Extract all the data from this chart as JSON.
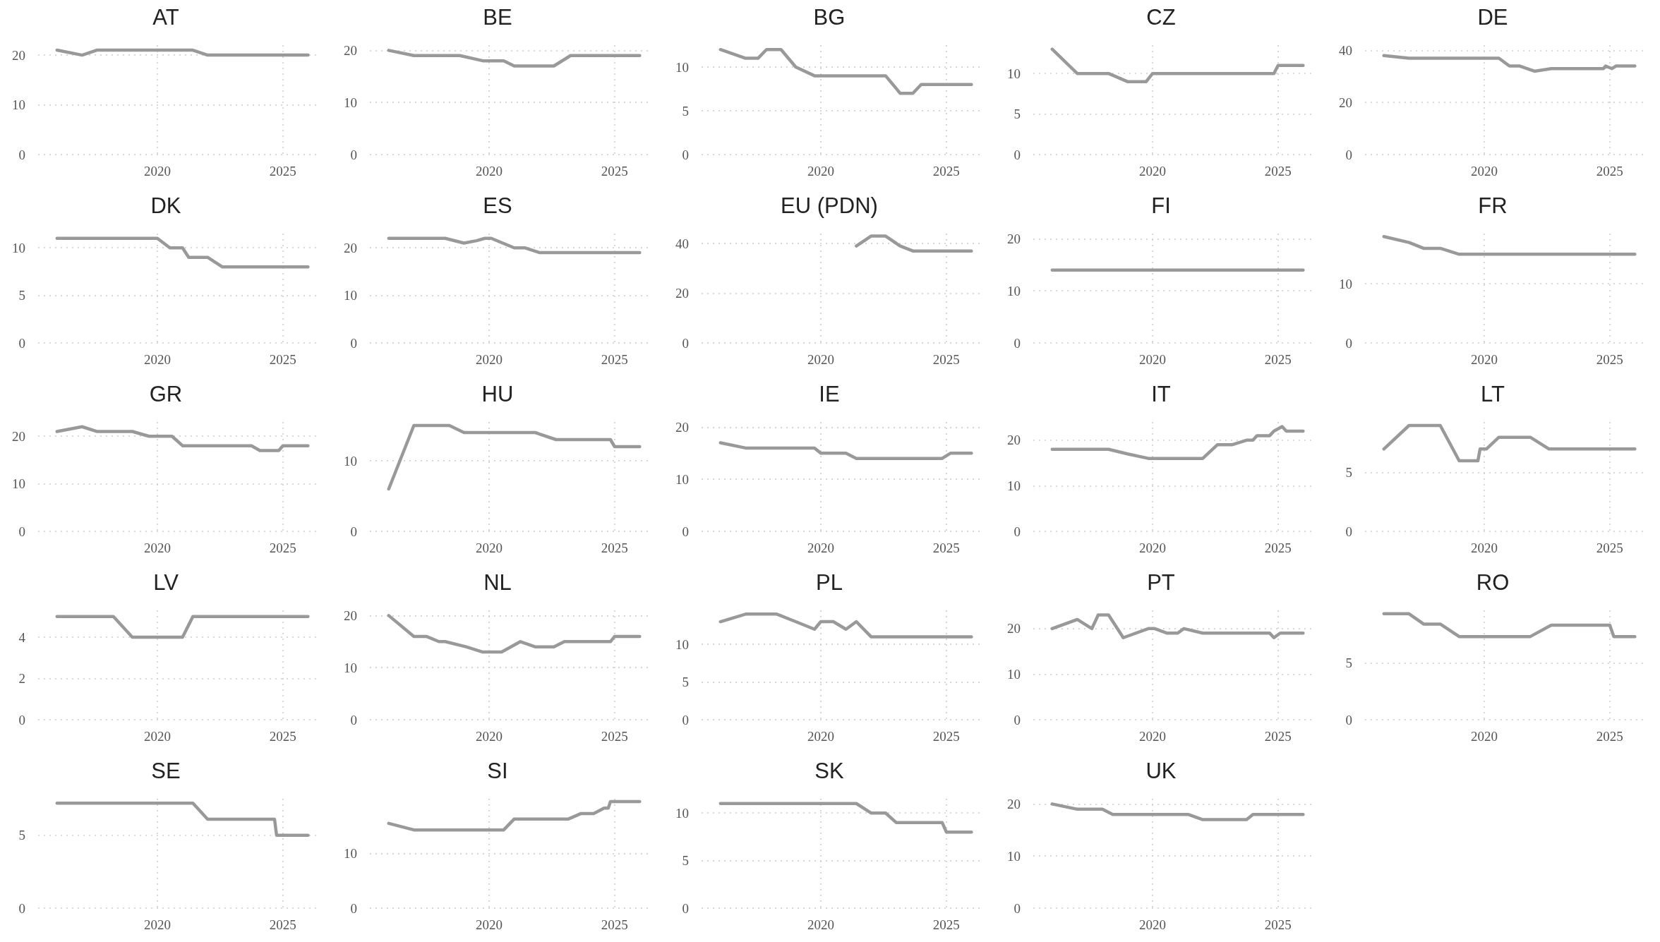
{
  "chart_data": [
    {
      "type": "line",
      "title": "AT",
      "x": [
        "2016",
        "2017",
        "2017-08",
        "2021-06",
        "2022",
        "2026"
      ],
      "values": [
        21,
        20,
        21,
        21,
        20,
        20
      ],
      "color": "#999999",
      "xlim": [
        "2015-04",
        "2026-07"
      ],
      "xticks": [
        "2020",
        "2025"
      ],
      "ylim": [
        0,
        22
      ],
      "yticks": [
        0,
        10,
        20
      ],
      "grid": true,
      "marker": "none"
    },
    {
      "type": "line",
      "title": "BE",
      "x": [
        "2016",
        "2017",
        "2018-11",
        "2019-10",
        "2020-08",
        "2021",
        "2022-08",
        "2023-04",
        "2026"
      ],
      "values": [
        20,
        19,
        19,
        18,
        18,
        17,
        17,
        19,
        19
      ],
      "color": "#999999",
      "xlim": [
        "2015-04",
        "2026-07"
      ],
      "xticks": [
        "2020",
        "2025"
      ],
      "ylim": [
        0,
        21
      ],
      "yticks": [
        0,
        10,
        20
      ],
      "grid": true,
      "marker": "none"
    },
    {
      "type": "line",
      "title": "BG",
      "x": [
        "2016",
        "2017",
        "2017-07",
        "2017-11",
        "2018-06",
        "2019",
        "2019-10",
        "2022-08",
        "2023-03",
        "2023-09",
        "2024",
        "2026"
      ],
      "values": [
        12,
        11,
        11,
        12,
        12,
        10,
        9,
        9,
        7,
        7,
        8,
        8
      ],
      "color": "#999999",
      "xlim": [
        "2015-04",
        "2026-07"
      ],
      "xticks": [
        "2020",
        "2025"
      ],
      "ylim": [
        0,
        12.5
      ],
      "yticks": [
        0,
        5,
        10
      ],
      "grid": true,
      "marker": "none"
    },
    {
      "type": "line",
      "title": "CZ",
      "x": [
        "2016",
        "2017",
        "2018-04",
        "2019",
        "2019-10",
        "2020",
        "2024-11",
        "2025",
        "2026"
      ],
      "values": [
        13,
        10,
        10,
        9,
        9,
        10,
        10,
        11,
        11
      ],
      "color": "#999999",
      "xlim": [
        "2015-04",
        "2026-07"
      ],
      "xticks": [
        "2020",
        "2025"
      ],
      "ylim": [
        0,
        13.5
      ],
      "yticks": [
        0,
        5,
        10
      ],
      "grid": true,
      "marker": "none"
    },
    {
      "type": "line",
      "title": "DE",
      "x": [
        "2016",
        "2017",
        "2020-08",
        "2021",
        "2021-06",
        "2022",
        "2022-09",
        "2024-10",
        "2024-11",
        "2025-02",
        "2025-04",
        "2026"
      ],
      "values": [
        38,
        37,
        37,
        34,
        34,
        32,
        33,
        33,
        34,
        33,
        34,
        34
      ],
      "color": "#999999",
      "xlim": [
        "2015-04",
        "2026-07"
      ],
      "xticks": [
        "2020",
        "2025"
      ],
      "ylim": [
        0,
        42
      ],
      "yticks": [
        0,
        20,
        40
      ],
      "grid": true,
      "marker": "none"
    },
    {
      "type": "line",
      "title": "DK",
      "x": [
        "2016",
        "2020",
        "2020-07",
        "2021",
        "2021-04",
        "2022",
        "2022-08",
        "2026"
      ],
      "values": [
        11,
        11,
        10,
        10,
        9,
        9,
        8,
        8
      ],
      "color": "#999999",
      "xlim": [
        "2015-04",
        "2026-07"
      ],
      "xticks": [
        "2020",
        "2025"
      ],
      "ylim": [
        0,
        11.5
      ],
      "yticks": [
        0,
        5,
        10
      ],
      "grid": true,
      "marker": "none"
    },
    {
      "type": "line",
      "title": "ES",
      "x": [
        "2016",
        "2018-04",
        "2019",
        "2019-07",
        "2019-11",
        "2020-02",
        "2021",
        "2021-06",
        "2022",
        "2026"
      ],
      "values": [
        22,
        22,
        21,
        21.5,
        22,
        22,
        20,
        20,
        19,
        19
      ],
      "color": "#999999",
      "xlim": [
        "2015-04",
        "2026-07"
      ],
      "xticks": [
        "2020",
        "2025"
      ],
      "ylim": [
        0,
        23
      ],
      "yticks": [
        0,
        10,
        20
      ],
      "grid": true,
      "marker": "none"
    },
    {
      "type": "line",
      "title": "EU (PDN)",
      "x": [
        "2021-06",
        "2022",
        "2022-08",
        "2023-03",
        "2023-09",
        "2026"
      ],
      "values": [
        39,
        43,
        43,
        39,
        37,
        37
      ],
      "color": "#999999",
      "xlim": [
        "2015-04",
        "2026-07"
      ],
      "xticks": [
        "2020",
        "2025"
      ],
      "ylim": [
        0,
        44
      ],
      "yticks": [
        0,
        20,
        40
      ],
      "grid": true,
      "marker": "none"
    },
    {
      "type": "line",
      "title": "FI",
      "x": [
        "2016",
        "2026"
      ],
      "values": [
        14,
        14
      ],
      "color": "#999999",
      "xlim": [
        "2015-04",
        "2026-07"
      ],
      "xticks": [
        "2020",
        "2025"
      ],
      "ylim": [
        0,
        21
      ],
      "yticks": [
        0,
        10,
        20
      ],
      "grid": true,
      "marker": "none"
    },
    {
      "type": "line",
      "title": "FR",
      "x": [
        "2016",
        "2017",
        "2017-08",
        "2018-04",
        "2019",
        "2026"
      ],
      "values": [
        18,
        17,
        16,
        16,
        15,
        15
      ],
      "color": "#999999",
      "xlim": [
        "2015-04",
        "2026-07"
      ],
      "xticks": [
        "2020",
        "2025"
      ],
      "ylim": [
        0,
        18.5
      ],
      "yticks": [
        0,
        10
      ],
      "grid": true,
      "marker": "none"
    },
    {
      "type": "line",
      "title": "GR",
      "x": [
        "2016",
        "2017",
        "2017-08",
        "2019",
        "2019-09",
        "2020-08",
        "2021",
        "2023-10",
        "2024-02",
        "2024-11",
        "2025",
        "2026"
      ],
      "values": [
        21,
        22,
        21,
        21,
        20,
        20,
        18,
        18,
        17,
        17,
        18,
        18
      ],
      "color": "#999999",
      "xlim": [
        "2015-04",
        "2026-07"
      ],
      "xticks": [
        "2020",
        "2025"
      ],
      "ylim": [
        0,
        23
      ],
      "yticks": [
        0,
        10,
        20
      ],
      "grid": true,
      "marker": "none"
    },
    {
      "type": "line",
      "title": "HU",
      "x": [
        "2016",
        "2017",
        "2018-06",
        "2019",
        "2021-11",
        "2022-09",
        "2024-11",
        "2025",
        "2026"
      ],
      "values": [
        6,
        15,
        15,
        14,
        14,
        13,
        13,
        12,
        12
      ],
      "color": "#999999",
      "xlim": [
        "2015-04",
        "2026-07"
      ],
      "xticks": [
        "2020",
        "2025"
      ],
      "ylim": [
        0,
        15.5
      ],
      "yticks": [
        0,
        10
      ],
      "grid": true,
      "marker": "none"
    },
    {
      "type": "line",
      "title": "IE",
      "x": [
        "2016",
        "2017",
        "2019-10",
        "2020",
        "2021",
        "2021-06",
        "2024-11",
        "2025-03",
        "2026"
      ],
      "values": [
        17,
        16,
        16,
        15,
        15,
        14,
        14,
        15,
        15
      ],
      "color": "#999999",
      "xlim": [
        "2015-04",
        "2026-07"
      ],
      "xticks": [
        "2020",
        "2025"
      ],
      "ylim": [
        0,
        21
      ],
      "yticks": [
        0,
        10,
        20
      ],
      "grid": true,
      "marker": "none"
    },
    {
      "type": "line",
      "title": "IT",
      "x": [
        "2016",
        "2018-04",
        "2019",
        "2019-11",
        "2022",
        "2022-08",
        "2023-03",
        "2023-10",
        "2024",
        "2024-03",
        "2024-09",
        "2024-11",
        "2025-03",
        "2025-05",
        "2026"
      ],
      "values": [
        18,
        18,
        17,
        16,
        16,
        19,
        19,
        20,
        20,
        21,
        21,
        22,
        23,
        22,
        22
      ],
      "color": "#999999",
      "xlim": [
        "2015-04",
        "2026-07"
      ],
      "xticks": [
        "2020",
        "2025"
      ],
      "ylim": [
        0,
        24
      ],
      "yticks": [
        0,
        10,
        20
      ],
      "grid": true,
      "marker": "none"
    },
    {
      "type": "line",
      "title": "LT",
      "x": [
        "2016",
        "2017",
        "2018-04",
        "2019",
        "2019-10",
        "2019-11",
        "2020-02",
        "2020-08",
        "2021-11",
        "2022-08",
        "2026"
      ],
      "values": [
        7,
        9,
        9,
        6,
        6,
        7,
        7,
        8,
        8,
        7,
        7
      ],
      "color": "#999999",
      "xlim": [
        "2015-04",
        "2026-07"
      ],
      "xticks": [
        "2020",
        "2025"
      ],
      "ylim": [
        0,
        9.3
      ],
      "yticks": [
        0,
        5
      ],
      "grid": true,
      "marker": "none"
    },
    {
      "type": "line",
      "title": "LV",
      "x": [
        "2016",
        "2018-04",
        "2019",
        "2021",
        "2021-06",
        "2026"
      ],
      "values": [
        5,
        5,
        4,
        4,
        5,
        5
      ],
      "color": "#999999",
      "xlim": [
        "2015-04",
        "2026-07"
      ],
      "xticks": [
        "2020",
        "2025"
      ],
      "ylim": [
        0,
        5.3
      ],
      "yticks": [
        0,
        2,
        4
      ],
      "grid": true,
      "marker": "none"
    },
    {
      "type": "line",
      "title": "NL",
      "x": [
        "2016",
        "2017",
        "2017-07",
        "2018",
        "2018-04",
        "2019-02",
        "2019-10",
        "2020-07",
        "2021-04",
        "2021-11",
        "2022-08",
        "2023",
        "2024-11",
        "2025",
        "2026"
      ],
      "values": [
        20,
        16,
        16,
        15,
        15,
        14,
        13,
        13,
        15,
        14,
        14,
        15,
        15,
        16,
        16
      ],
      "color": "#999999",
      "xlim": [
        "2015-04",
        "2026-07"
      ],
      "xticks": [
        "2020",
        "2025"
      ],
      "ylim": [
        0,
        21
      ],
      "yticks": [
        0,
        10,
        20
      ],
      "grid": true,
      "marker": "none"
    },
    {
      "type": "line",
      "title": "PL",
      "x": [
        "2016",
        "2017",
        "2018-04",
        "2019",
        "2019-10",
        "2020",
        "2020-07",
        "2021",
        "2021-06",
        "2022",
        "2026"
      ],
      "values": [
        13,
        14,
        14,
        13,
        12,
        13,
        13,
        12,
        13,
        11,
        11
      ],
      "color": "#999999",
      "xlim": [
        "2015-04",
        "2026-07"
      ],
      "xticks": [
        "2020",
        "2025"
      ],
      "ylim": [
        0,
        14.5
      ],
      "yticks": [
        0,
        5,
        10
      ],
      "grid": true,
      "marker": "none"
    },
    {
      "type": "line",
      "title": "PT",
      "x": [
        "2016",
        "2017",
        "2017-08",
        "2017-11",
        "2018-04",
        "2018-11",
        "2019-11",
        "2020-02",
        "2020-08",
        "2021",
        "2021-04",
        "2022",
        "2024-09",
        "2024-11",
        "2025-02",
        "2026"
      ],
      "values": [
        20,
        22,
        20,
        23,
        23,
        18,
        20,
        20,
        19,
        19,
        20,
        19,
        19,
        18,
        19,
        19
      ],
      "color": "#999999",
      "xlim": [
        "2015-04",
        "2026-07"
      ],
      "xticks": [
        "2020",
        "2025"
      ],
      "ylim": [
        0,
        24
      ],
      "yticks": [
        0,
        10,
        20
      ],
      "grid": true,
      "marker": "none"
    },
    {
      "type": "line",
      "title": "RO",
      "x": [
        "2016",
        "2017",
        "2017-08",
        "2018-04",
        "2019",
        "2021-11",
        "2022-09",
        "2025",
        "2025-03",
        "2026"
      ],
      "values": [
        9.3,
        9.3,
        8.4,
        8.4,
        7.3,
        7.3,
        8.3,
        8.3,
        7.3,
        7.3
      ],
      "color": "#999999",
      "xlim": [
        "2015-04",
        "2026-07"
      ],
      "xticks": [
        "2020",
        "2025"
      ],
      "ylim": [
        0,
        9.6
      ],
      "yticks": [
        0,
        5
      ],
      "grid": true,
      "marker": "none"
    },
    {
      "type": "line",
      "title": "SE",
      "x": [
        "2016",
        "2021-06",
        "2022",
        "2024-09",
        "2024-10",
        "2026"
      ],
      "values": [
        7.2,
        7.2,
        6.1,
        6.1,
        5,
        5
      ],
      "color": "#999999",
      "xlim": [
        "2015-04",
        "2026-07"
      ],
      "xticks": [
        "2020",
        "2025"
      ],
      "ylim": [
        0,
        7.5
      ],
      "yticks": [
        0,
        5
      ],
      "grid": true,
      "marker": "none"
    },
    {
      "type": "line",
      "title": "SI",
      "x": [
        "2016",
        "2017",
        "2020-08",
        "2021",
        "2023-03",
        "2023-09",
        "2024-03",
        "2024-08",
        "2024-10",
        "2024-11",
        "2026"
      ],
      "values": [
        15.5,
        14.3,
        14.3,
        16.3,
        16.3,
        17.3,
        17.3,
        18.3,
        18.3,
        19.5,
        19.5
      ],
      "color": "#999999",
      "xlim": [
        "2015-04",
        "2026-07"
      ],
      "xticks": [
        "2020",
        "2025"
      ],
      "ylim": [
        0,
        20
      ],
      "yticks": [
        0,
        10
      ],
      "grid": true,
      "marker": "none"
    },
    {
      "type": "line",
      "title": "SK",
      "x": [
        "2016",
        "2021-06",
        "2022",
        "2022-08",
        "2023",
        "2024-11",
        "2025",
        "2026"
      ],
      "values": [
        11,
        11,
        10,
        10,
        9,
        9,
        8,
        8
      ],
      "color": "#999999",
      "xlim": [
        "2015-04",
        "2026-07"
      ],
      "xticks": [
        "2020",
        "2025"
      ],
      "ylim": [
        0,
        11.5
      ],
      "yticks": [
        0,
        5,
        10
      ],
      "grid": true,
      "marker": "none"
    },
    {
      "type": "line",
      "title": "UK",
      "x": [
        "2016",
        "2017",
        "2018",
        "2018-06",
        "2021-06",
        "2022",
        "2023-10",
        "2024",
        "2026"
      ],
      "values": [
        20,
        19,
        19,
        18,
        18,
        17,
        17,
        18,
        18
      ],
      "color": "#999999",
      "xlim": [
        "2015-04",
        "2026-07"
      ],
      "xticks": [
        "2020",
        "2025"
      ],
      "ylim": [
        0,
        21
      ],
      "yticks": [
        0,
        10,
        20
      ],
      "grid": true,
      "marker": "none"
    }
  ]
}
